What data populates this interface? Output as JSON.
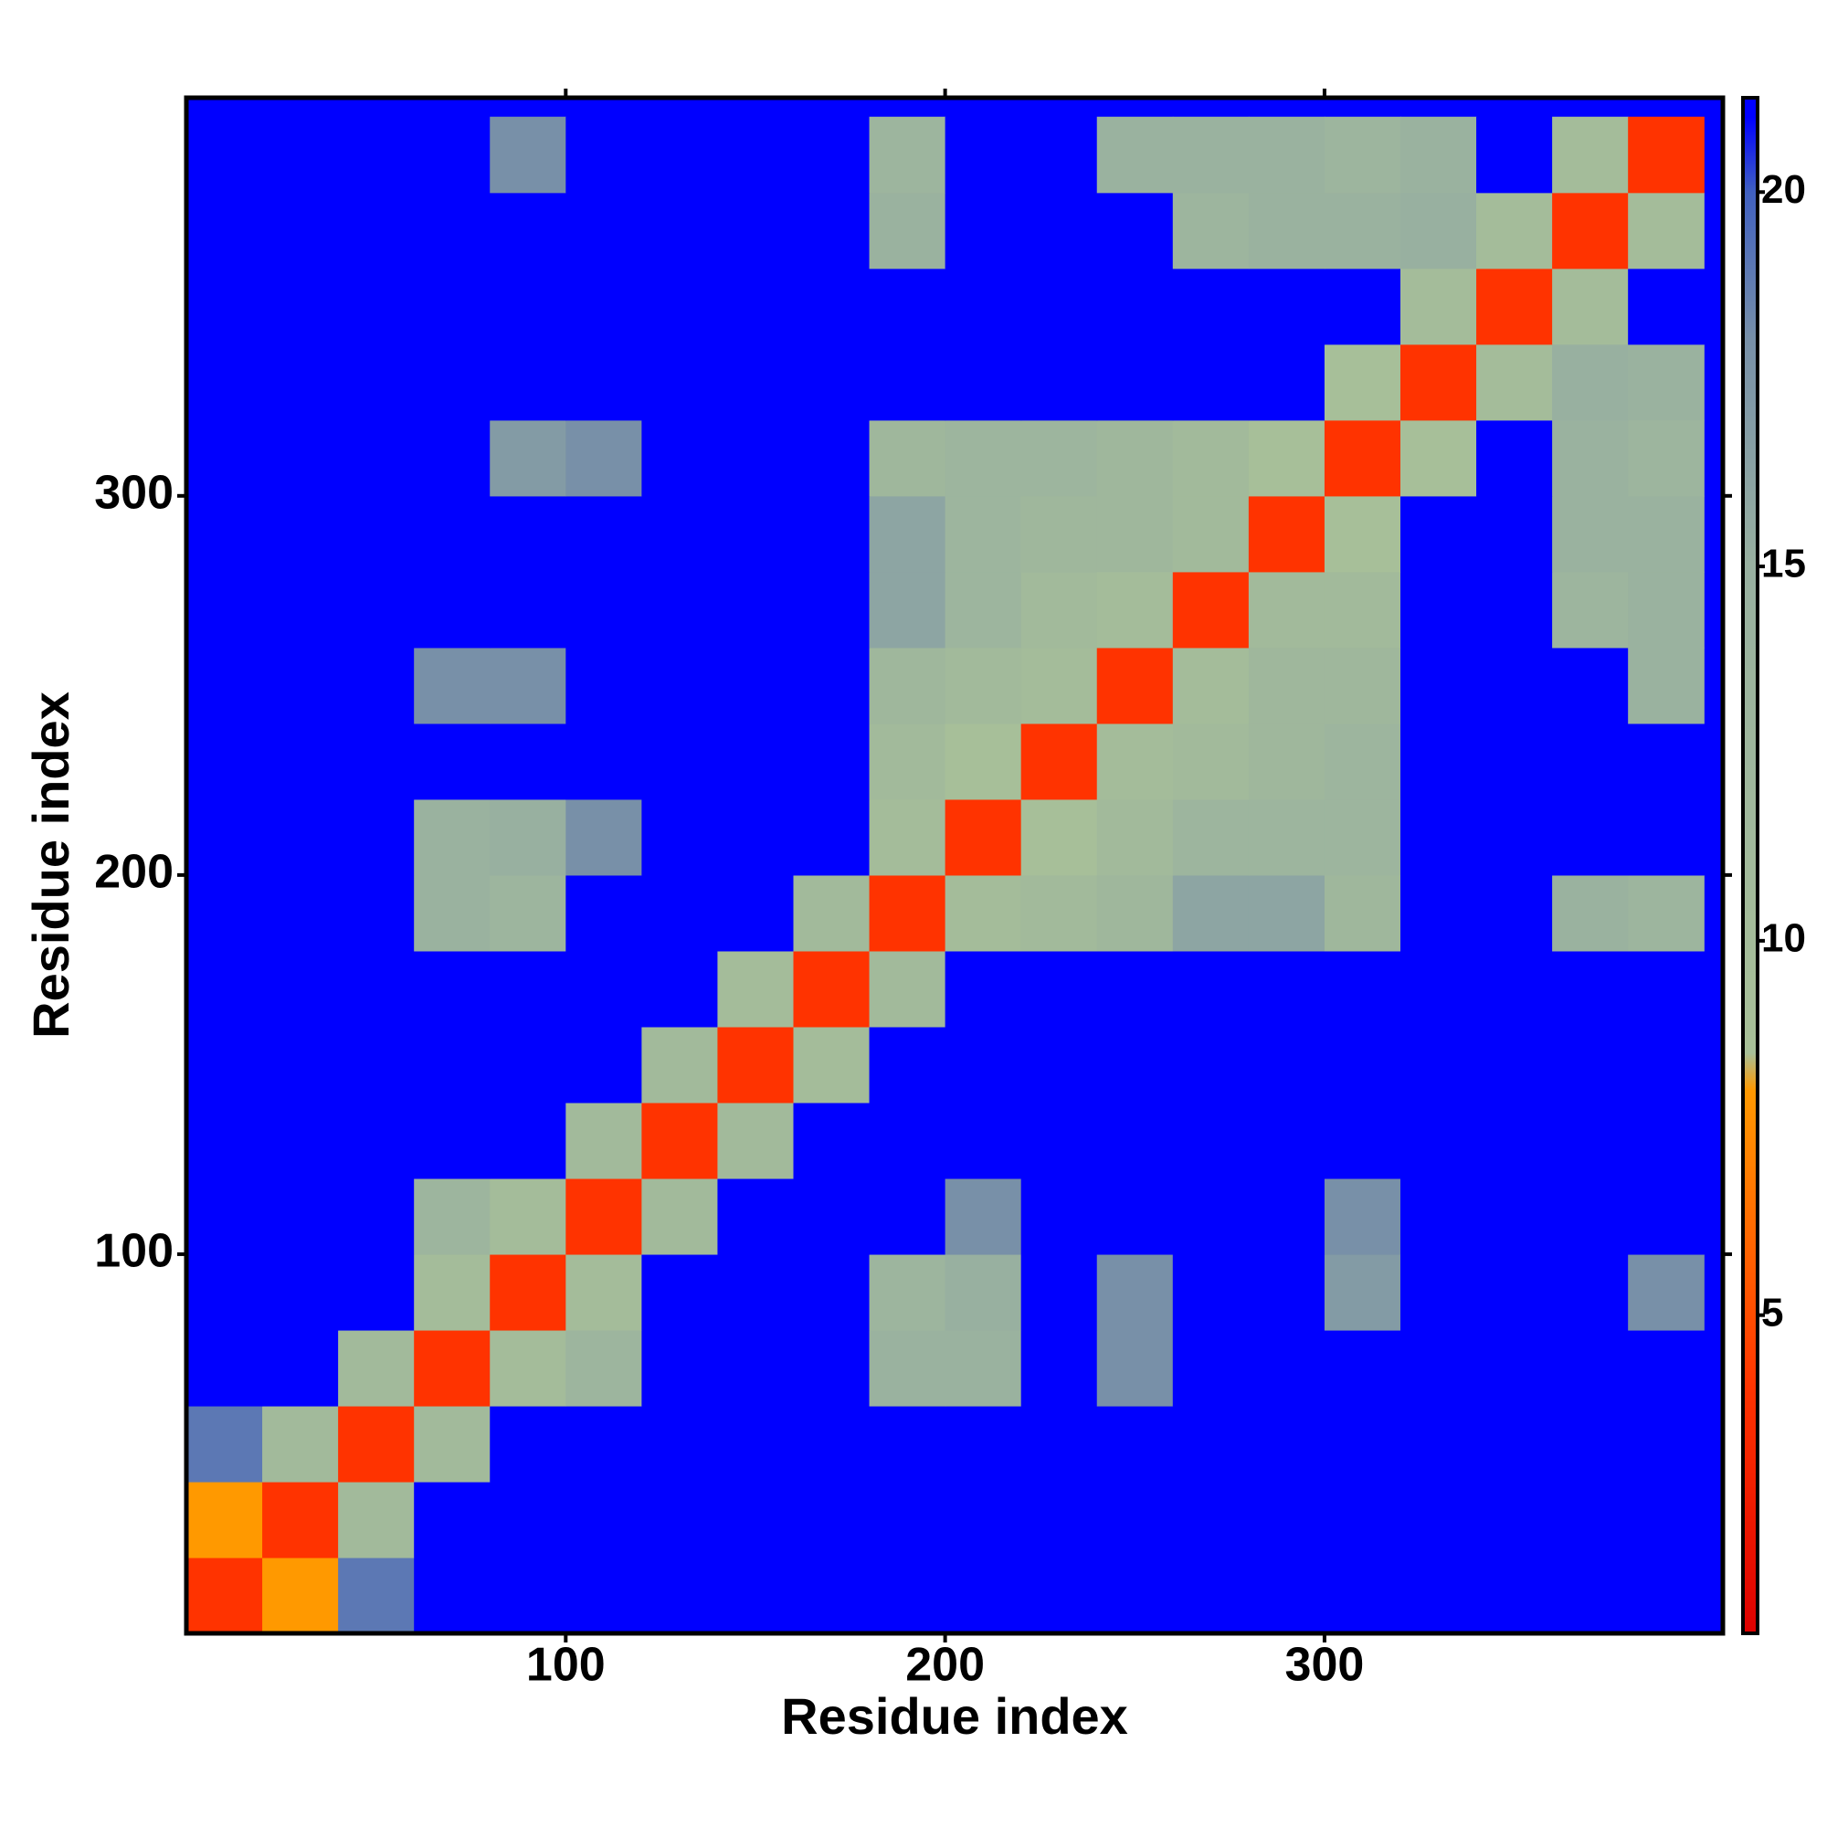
{
  "chart_data": {
    "type": "heatmap",
    "x_label": "Residue index",
    "y_label": "Residue index",
    "x": [
      10,
      30,
      50,
      70,
      90,
      110,
      130,
      150,
      170,
      190,
      210,
      230,
      250,
      270,
      290,
      310,
      330,
      350,
      370,
      390
    ],
    "y": [
      10,
      30,
      50,
      70,
      90,
      110,
      130,
      150,
      170,
      190,
      210,
      230,
      250,
      270,
      290,
      310,
      330,
      350,
      370,
      390
    ],
    "z": [
      [
        4,
        8,
        19,
        21,
        21,
        21,
        21,
        21,
        21,
        21,
        21,
        21,
        21,
        21,
        21,
        21,
        21,
        21,
        21,
        21
      ],
      [
        8,
        4,
        11,
        21,
        21,
        21,
        21,
        21,
        21,
        21,
        21,
        21,
        21,
        21,
        21,
        21,
        21,
        21,
        21,
        21
      ],
      [
        19,
        11,
        4,
        11,
        21,
        21,
        21,
        21,
        21,
        21,
        21,
        21,
        21,
        21,
        21,
        21,
        21,
        21,
        21,
        21
      ],
      [
        21,
        21,
        11,
        4,
        10,
        13,
        21,
        21,
        21,
        14,
        14,
        21,
        18,
        21,
        21,
        21,
        21,
        21,
        21,
        21
      ],
      [
        21,
        21,
        21,
        10,
        4,
        10,
        21,
        21,
        21,
        13,
        15,
        21,
        18,
        21,
        21,
        17,
        21,
        21,
        21,
        18
      ],
      [
        21,
        21,
        21,
        13,
        10,
        4,
        11,
        21,
        21,
        21,
        18,
        21,
        21,
        21,
        21,
        18,
        21,
        21,
        21,
        21
      ],
      [
        21,
        21,
        21,
        21,
        21,
        11,
        4,
        11,
        21,
        21,
        21,
        21,
        21,
        21,
        21,
        21,
        21,
        21,
        21,
        21
      ],
      [
        21,
        21,
        21,
        21,
        21,
        21,
        11,
        4,
        10,
        21,
        21,
        21,
        21,
        21,
        21,
        21,
        21,
        21,
        21,
        21
      ],
      [
        21,
        21,
        21,
        21,
        21,
        21,
        21,
        10,
        4,
        11,
        21,
        21,
        21,
        21,
        21,
        21,
        21,
        21,
        21,
        21
      ],
      [
        21,
        21,
        21,
        14,
        13,
        21,
        21,
        21,
        11,
        4,
        10,
        11,
        12,
        16,
        16,
        12,
        21,
        21,
        14,
        13
      ],
      [
        21,
        21,
        21,
        14,
        15,
        18,
        21,
        21,
        21,
        10,
        4,
        9,
        11,
        13,
        13,
        13,
        21,
        21,
        21,
        21
      ],
      [
        21,
        21,
        21,
        21,
        21,
        21,
        21,
        21,
        21,
        11,
        9,
        4,
        10,
        11,
        12,
        13,
        21,
        21,
        21,
        21
      ],
      [
        21,
        21,
        21,
        18,
        18,
        21,
        21,
        21,
        21,
        12,
        11,
        10,
        4,
        10,
        12,
        12,
        21,
        21,
        21,
        14
      ],
      [
        21,
        21,
        21,
        21,
        21,
        21,
        21,
        21,
        21,
        16,
        13,
        11,
        10,
        4,
        11,
        11,
        21,
        21,
        13,
        14
      ],
      [
        21,
        21,
        21,
        21,
        21,
        21,
        21,
        21,
        21,
        16,
        13,
        12,
        12,
        11,
        4,
        9,
        21,
        21,
        14,
        14
      ],
      [
        21,
        21,
        21,
        21,
        17,
        18,
        21,
        21,
        21,
        12,
        13,
        13,
        12,
        11,
        9,
        4,
        9,
        21,
        14,
        13
      ],
      [
        21,
        21,
        21,
        21,
        21,
        21,
        21,
        21,
        21,
        21,
        21,
        21,
        21,
        21,
        21,
        9,
        4,
        10,
        15,
        14
      ],
      [
        21,
        21,
        21,
        21,
        21,
        21,
        21,
        21,
        21,
        21,
        21,
        21,
        21,
        21,
        21,
        21,
        10,
        4,
        10,
        21
      ],
      [
        21,
        21,
        21,
        21,
        21,
        21,
        21,
        21,
        21,
        14,
        21,
        21,
        21,
        13,
        14,
        14,
        15,
        10,
        4,
        10
      ],
      [
        21,
        21,
        21,
        21,
        18,
        21,
        21,
        21,
        21,
        13,
        21,
        21,
        14,
        14,
        14,
        13,
        14,
        21,
        10,
        4
      ]
    ],
    "xlim": [
      0,
      405
    ],
    "ylim": [
      0,
      405
    ],
    "xticks": [
      100,
      200,
      300
    ],
    "yticks": [
      100,
      200,
      300
    ],
    "clim": [
      0.75,
      21.26
    ],
    "cticks": [
      5,
      10,
      15,
      20
    ],
    "colorscale": [
      [
        0.75,
        "#dd0000"
      ],
      [
        4,
        "#ff3300"
      ],
      [
        8,
        "#ff9900"
      ],
      [
        8.5,
        "#a8c098"
      ],
      [
        15,
        "#98b0a0"
      ],
      [
        18,
        "#7890a8"
      ],
      [
        20,
        "#4060c0"
      ],
      [
        21,
        "#0000ff"
      ]
    ]
  }
}
